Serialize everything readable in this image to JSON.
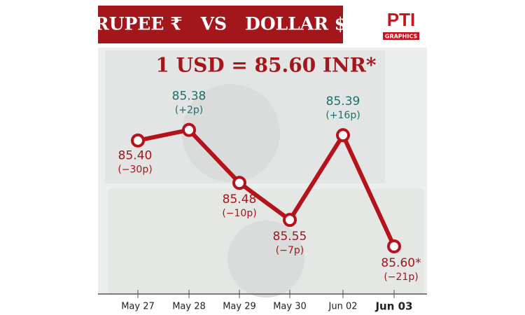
{
  "chart_data": {
    "type": "line",
    "title": "RUPEE ₹   VS   DOLLAR $",
    "logo": "PTI",
    "logo_sub": "GRAPHICS",
    "subtitle": "1 USD = 85.60 INR*",
    "categories": [
      "May 27",
      "May 28",
      "May 29",
      "May 30",
      "Jun 02",
      "Jun 03"
    ],
    "values": [
      85.4,
      85.38,
      85.48,
      85.55,
      85.39,
      85.6
    ],
    "value_labels": [
      "85.40",
      "85.38",
      "85.48",
      "85.55",
      "85.39",
      "85.60*"
    ],
    "changes": [
      "(−30p)",
      "(+2p)",
      "(−10p)",
      "(−7p)",
      "(+16p)",
      "(−21p)"
    ],
    "label_colors": [
      "#a3171c",
      "#1f6f6b",
      "#a3171c",
      "#a3171c",
      "#1f6f6b",
      "#a3171c"
    ],
    "color": "#b5121b",
    "ylim": [
      85.28,
      85.69
    ],
    "y_inverted": true
  }
}
